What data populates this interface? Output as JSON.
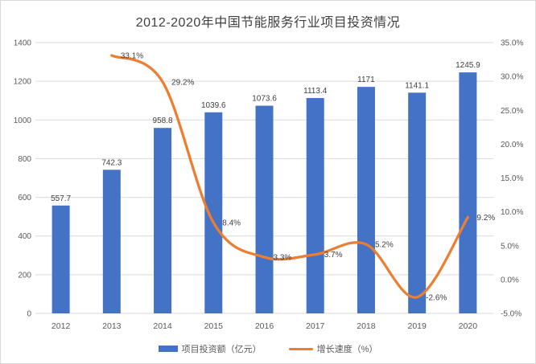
{
  "window": {
    "background": "#ffffff",
    "border_color": "#d9d9d9"
  },
  "chart_data": {
    "type": "combo-bar-line",
    "title": "2012-2020年中国节能服务行业项目投资情况",
    "categories": [
      "2012",
      "2013",
      "2014",
      "2015",
      "2016",
      "2017",
      "2018",
      "2019",
      "2020"
    ],
    "series": [
      {
        "name": "项目投资额（亿元）",
        "type": "bar",
        "axis": "left",
        "color": "#4472C4",
        "values": [
          557.7,
          742.3,
          958.8,
          1039.6,
          1073.6,
          1113.4,
          1171,
          1141.1,
          1245.9
        ],
        "labels": [
          "557.7",
          "742.3",
          "958.8",
          "1039.6",
          "1073.6",
          "1113.4",
          "1171",
          "1141.1",
          "1245.9"
        ]
      },
      {
        "name": "增长速度（%）",
        "type": "line",
        "axis": "right",
        "smooth": true,
        "color": "#ED7D31",
        "values": [
          null,
          33.1,
          29.2,
          8.4,
          3.3,
          3.7,
          5.2,
          -2.6,
          9.2
        ],
        "labels": [
          null,
          "33.1%",
          "29.2%",
          "8.4%",
          "3.3%",
          "3.7%",
          "5.2%",
          "-2.6%",
          "9.2%"
        ]
      }
    ],
    "left_axis": {
      "min": 0,
      "max": 1400,
      "step": 200,
      "tick_labels": [
        "0",
        "200",
        "400",
        "600",
        "800",
        "1000",
        "1200",
        "1400"
      ]
    },
    "right_axis": {
      "min": -5,
      "max": 35,
      "step": 5,
      "tick_labels": [
        "-5.0%",
        "0.0%",
        "5.0%",
        "10.0%",
        "15.0%",
        "20.0%",
        "25.0%",
        "30.0%",
        "35.0%"
      ]
    },
    "grid": true,
    "legend_position": "bottom",
    "colors": {
      "gridline": "#d9d9d9",
      "axis_text": "#595959",
      "data_label": "#404040",
      "title_text": "#404040"
    }
  }
}
